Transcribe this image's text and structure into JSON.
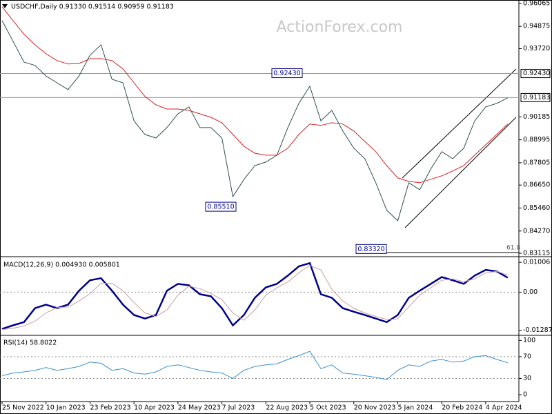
{
  "watermark": "ActionForex.com",
  "chart_data": [
    {
      "type": "line",
      "title": "USDCHF,Daily  0.91330 0.91514 0.90959 0.91183",
      "categories": [
        "25 Nov 2022",
        null,
        null,
        null,
        "10 Jan 2023",
        null,
        null,
        null,
        "23 Feb 2023",
        null,
        null,
        null,
        "10 Apr 2023",
        null,
        null,
        null,
        "24 May 2023",
        null,
        null,
        null,
        "7 Jul 2023",
        null,
        null,
        null,
        "22 Aug 2023",
        null,
        null,
        null,
        "5 Oct 2023",
        null,
        null,
        null,
        "20 Nov 2023",
        null,
        null,
        null,
        "5 Jan 2024",
        null,
        null,
        null,
        "20 Feb 2024",
        null,
        null,
        null,
        "4 Apr 2024",
        null,
        null
      ],
      "series": [
        {
          "color": "#2f4f4f",
          "values": [
            0.9517,
            0.941,
            0.9302,
            0.9285,
            0.923,
            0.9195,
            0.916,
            0.923,
            0.9338,
            0.9392,
            0.9213,
            0.9195,
            0.8998,
            0.8927,
            0.8909,
            0.8963,
            0.9034,
            0.907,
            0.8963,
            0.8963,
            0.8909,
            0.8605,
            0.8694,
            0.8766,
            0.8784,
            0.882,
            0.8963,
            0.9088,
            0.9177,
            0.8998,
            0.9052,
            0.8945,
            0.8856,
            0.8802,
            0.8677,
            0.8534,
            0.848,
            0.8677,
            0.8641,
            0.8748,
            0.8838,
            0.8802,
            0.8856,
            0.8998,
            0.907,
            0.9088,
            0.9117
          ]
        },
        {
          "color": "#d62020",
          "values": [
            0.9589,
            0.9517,
            0.9446,
            0.9392,
            0.9345,
            0.931,
            0.9292,
            0.9295,
            0.932,
            0.932,
            0.931,
            0.9267,
            0.9195,
            0.9124,
            0.9081,
            0.9059,
            0.9059,
            0.9052,
            0.9034,
            0.9016,
            0.8988,
            0.8927,
            0.8866,
            0.883,
            0.882,
            0.882,
            0.8856,
            0.8927,
            0.8981,
            0.8974,
            0.8988,
            0.8981,
            0.8945,
            0.8891,
            0.8838,
            0.8766,
            0.8702,
            0.8684,
            0.8677,
            0.8695,
            0.8713,
            0.8738,
            0.8766,
            0.882,
            0.8874,
            0.8927,
            0.8981
          ]
        }
      ],
      "ylim": [
        0.8301,
        0.9624
      ],
      "yticks": [
        0.96065,
        0.94875,
        {
          "value": 0.9372,
          "label": "0.93720"
        },
        0.90185,
        0.88995,
        0.87805,
        {
          "value": 0.8665,
          "label": "0.86650"
        },
        {
          "value": 0.8546,
          "label": "0.85460"
        },
        {
          "value": 0.8427,
          "label": "0.84270"
        },
        0.83115
      ],
      "hlines": [
        {
          "value": 0.9243,
          "label": "0.92430"
        },
        {
          "value": 0.91183,
          "label": "0.91183"
        }
      ],
      "annotations": [
        {
          "value": 0.9243,
          "label": "0.92430"
        },
        {
          "value": 0.8551,
          "label": "0.85510"
        },
        {
          "value": 0.8332,
          "label": "0.83320"
        }
      ],
      "fib_label": "61.8"
    },
    {
      "type": "line",
      "title": "MACD(12,26,9) 0.004930 0.005801",
      "series": [
        {
          "color": "#00008b",
          "values": [
            -0.0124,
            -0.0112,
            -0.0101,
            -0.0054,
            -0.0042,
            -0.0054,
            -0.0042,
            0.0005,
            0.004,
            0.0047,
            0.0005,
            -0.0042,
            -0.0077,
            -0.0089,
            -0.0077,
            0.0005,
            0.0028,
            0.0023,
            -0.0007,
            -0.0014,
            -0.0054,
            -0.0112,
            -0.0077,
            -0.0019,
            0.0016,
            0.0028,
            0.0056,
            0.0087,
            0.0098,
            -0.0007,
            -0.0019,
            -0.0054,
            -0.0066,
            -0.0077,
            -0.0089,
            -0.0101,
            -0.0077,
            -0.0019,
            0.0005,
            0.0028,
            0.0051,
            0.004,
            0.0028,
            0.0056,
            0.0075,
            0.007,
            0.0049
          ]
        },
        {
          "color": "#c9a0a0",
          "values": [
            -0.0126,
            -0.0122,
            -0.0114,
            -0.0098,
            -0.007,
            -0.0052,
            -0.005,
            -0.003,
            -0.0005,
            0.003,
            0.003,
            0.0005,
            -0.0035,
            -0.007,
            -0.0082,
            -0.006,
            -0.001,
            0.002,
            0.0012,
            -0.0005,
            -0.0025,
            -0.007,
            -0.0095,
            -0.006,
            -0.001,
            0.0015,
            0.0035,
            0.0065,
            0.009,
            0.0075,
            0.001,
            -0.003,
            -0.0055,
            -0.007,
            -0.0082,
            -0.0092,
            -0.009,
            -0.005,
            -0.001,
            0.0015,
            0.004,
            0.0045,
            0.0035,
            0.0045,
            0.0065,
            0.007,
            0.0058
          ]
        }
      ],
      "ylim": [
        -0.0141,
        0.0115
      ],
      "yticks": [
        0.01006,
        {
          "value": 0,
          "label": "0.00"
        },
        -0.012878
      ],
      "levels": [
        0
      ]
    },
    {
      "type": "line",
      "title": "RSI(14) 58.8022",
      "series": [
        {
          "color": "#3a8fd0",
          "values": [
            35,
            40,
            42,
            45,
            50,
            45,
            48,
            52,
            60,
            58,
            45,
            48,
            40,
            38,
            42,
            52,
            55,
            50,
            45,
            42,
            40,
            30,
            45,
            52,
            55,
            57,
            65,
            72,
            80,
            48,
            55,
            40,
            38,
            35,
            32,
            28,
            45,
            55,
            52,
            62,
            65,
            60,
            62,
            70,
            72,
            65,
            59
          ]
        }
      ],
      "ylim": [
        -10,
        108
      ],
      "yticks": [
        100,
        70,
        30,
        0
      ],
      "levels": [
        70,
        30
      ]
    }
  ]
}
